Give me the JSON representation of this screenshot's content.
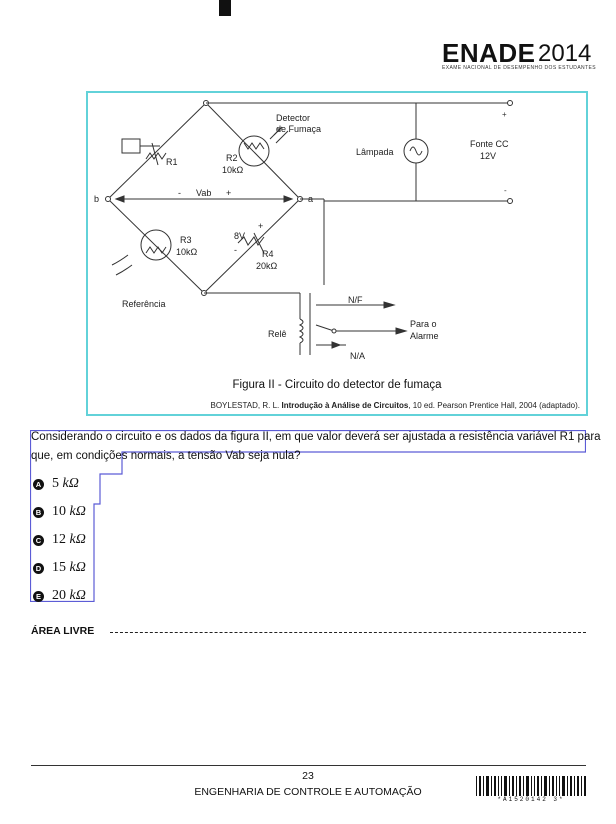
{
  "header": {
    "brand": "ENADE",
    "year": "2014",
    "subtitle": "EXAME NACIONAL DE DESEMPENHO DOS ESTUDANTES"
  },
  "figure": {
    "labels": {
      "detector": [
        "Detector",
        "de Fumaça"
      ],
      "r1": "R1",
      "r2": [
        "R2",
        "10kΩ"
      ],
      "lamp": "Lâmpada",
      "source": [
        "Fonte CC",
        "12V"
      ],
      "node_b": "b",
      "node_a": "a",
      "vab": "Vab",
      "minus": "-",
      "plus": "+",
      "r3": [
        "R3",
        "10kΩ"
      ],
      "r4": [
        "R4",
        "20kΩ"
      ],
      "v8": "8V",
      "reference": "Referência",
      "nf": "N/F",
      "na": "N/A",
      "relay": "Relê",
      "alarm": [
        "Para o",
        "Alarme"
      ]
    },
    "caption": "Figura II - Circuito do detector de fumaça",
    "source_prefix": "BOYLESTAD, R. L. ",
    "source_title": "Introdução à Análise de Circuitos",
    "source_suffix": ", 10 ed. Pearson Prentice Hall, 2004 (adaptado)."
  },
  "question": {
    "line1": "Considerando o circuito e os dados da figura II, em que valor deverá ser ajustada a resistência variável R1 para",
    "line2": "que, em condições normais, a tensão Vab seja nula?"
  },
  "options": [
    {
      "letter": "A",
      "value": "5",
      "unit": "kΩ"
    },
    {
      "letter": "B",
      "value": "10",
      "unit": "kΩ"
    },
    {
      "letter": "C",
      "value": "12",
      "unit": "kΩ"
    },
    {
      "letter": "D",
      "value": "15",
      "unit": "kΩ"
    },
    {
      "letter": "E",
      "value": "20",
      "unit": "kΩ"
    }
  ],
  "area_label": "ÁREA LIVRE",
  "footer": {
    "page": "23",
    "course": "ENGENHARIA DE CONTROLE E AUTOMAÇÃO",
    "barcode_digits": "*A1520142 3*"
  }
}
